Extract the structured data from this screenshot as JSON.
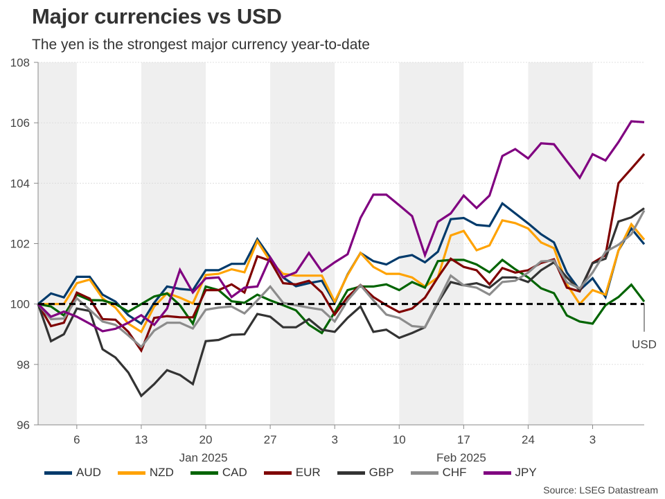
{
  "title": "Major currencies vs USD",
  "subtitle": "The yen is the strongest major currency year-to-date",
  "source": "Source: LSEG Datastream",
  "chart_data": {
    "type": "line",
    "title": "Major currencies vs USD",
    "subtitle": "The yen is the strongest major currency year-to-date",
    "xlabel": "",
    "ylabel": "",
    "ylim": [
      96,
      108
    ],
    "yticks": [
      "96",
      "98",
      "100",
      "102",
      "104",
      "106",
      "108"
    ],
    "ytick_values": [
      96,
      98,
      100,
      102,
      104,
      106,
      108
    ],
    "xtick_labels": [
      "6",
      "13",
      "20",
      "27",
      "3",
      "10",
      "17",
      "24",
      "3"
    ],
    "xtick_indices": [
      3,
      8,
      13,
      18,
      23,
      28,
      33,
      38,
      43
    ],
    "month_labels": [
      {
        "label": "Jan 2025",
        "index": 15.5
      },
      {
        "label": "Feb 2025",
        "index": 35.5
      }
    ],
    "shaded_weeks": [
      [
        0,
        3
      ],
      [
        8,
        13
      ],
      [
        18,
        23
      ],
      [
        28,
        33
      ],
      [
        38,
        43
      ]
    ],
    "baseline": {
      "name": "USD",
      "value": 100,
      "label": "USD"
    },
    "grid": true,
    "legend_position": "bottom",
    "n_points": 48,
    "series": [
      {
        "name": "AUD",
        "color": "#003a6b",
        "values": [
          100,
          100.35,
          100.22,
          100.9,
          100.9,
          100.31,
          100.08,
          99.63,
          99.35,
          100.04,
          100.58,
          100.5,
          100.46,
          101.12,
          101.12,
          101.33,
          101.33,
          102.15,
          101.54,
          100.88,
          100.59,
          100.69,
          100.77,
          100.04,
          100.98,
          101.69,
          101.42,
          101.31,
          101.54,
          101.62,
          101.38,
          101.73,
          102.81,
          102.85,
          102.62,
          102.58,
          103.33,
          103.0,
          102.67,
          102.31,
          102.04,
          101.04,
          100.46,
          100.85,
          100.23,
          101.77,
          102.5,
          101.98
        ]
      },
      {
        "name": "NZD",
        "color": "#ffa200",
        "values": [
          100,
          100,
          100,
          100.69,
          100.81,
          100.19,
          99.88,
          99.35,
          99.08,
          99.92,
          100.36,
          100.21,
          100.02,
          100.96,
          101.0,
          101.15,
          101.05,
          102.08,
          101.42,
          101.0,
          100.94,
          100.94,
          100.94,
          100.08,
          100.96,
          101.69,
          101.23,
          101.0,
          101.0,
          100.88,
          100.58,
          100.88,
          102.27,
          102.42,
          101.78,
          101.94,
          102.77,
          102.68,
          102.5,
          102.04,
          101.85,
          100.65,
          100.0,
          100.46,
          100.31,
          101.77,
          102.64,
          102.13
        ]
      },
      {
        "name": "CAD",
        "color": "#006400",
        "values": [
          100,
          99.92,
          99.62,
          100.31,
          100.13,
          100.12,
          100.0,
          99.75,
          100.0,
          100.25,
          100.35,
          99.96,
          99.35,
          100.58,
          100.46,
          100.09,
          100.04,
          100.31,
          100.12,
          99.96,
          99.79,
          99.31,
          99.04,
          99.73,
          100.46,
          100.58,
          100.58,
          100.65,
          100.46,
          100.73,
          100.54,
          101.42,
          101.46,
          101.46,
          101.31,
          101.05,
          101.46,
          101.15,
          100.88,
          100.52,
          100.36,
          99.62,
          99.42,
          99.35,
          99.96,
          100.23,
          100.64,
          100.08
        ]
      },
      {
        "name": "EUR",
        "color": "#7f0000",
        "values": [
          100,
          99.27,
          99.38,
          100.38,
          100.18,
          99.5,
          99.48,
          99.08,
          98.46,
          99.54,
          99.6,
          99.56,
          99.56,
          100.46,
          100.46,
          100.65,
          100.38,
          101.58,
          101.43,
          100.69,
          100.65,
          100.77,
          100.38,
          99.65,
          100.23,
          100.63,
          100.23,
          99.96,
          99.73,
          99.85,
          100.21,
          100.88,
          101.5,
          101.23,
          101.12,
          100.65,
          101.19,
          101.04,
          101.12,
          101.36,
          101.48,
          100.54,
          100.42,
          101.36,
          101.62,
          104.0,
          104.48,
          104.97
        ]
      },
      {
        "name": "GBP",
        "color": "#333333",
        "values": [
          100,
          98.77,
          99.0,
          99.85,
          99.77,
          98.5,
          98.23,
          97.73,
          96.96,
          97.35,
          97.81,
          97.65,
          97.35,
          98.77,
          98.81,
          98.98,
          99.0,
          99.67,
          99.58,
          99.23,
          99.23,
          99.5,
          99.15,
          99.08,
          99.54,
          99.92,
          99.08,
          99.15,
          98.88,
          99.04,
          99.23,
          100.04,
          100.73,
          100.62,
          100.69,
          100.54,
          100.88,
          100.88,
          100.73,
          101.12,
          101.38,
          100.88,
          100.46,
          101.35,
          101.5,
          102.73,
          102.87,
          103.17
        ]
      },
      {
        "name": "CHF",
        "color": "#8c8c8c",
        "values": [
          100,
          99.5,
          99.52,
          100.19,
          99.81,
          99.42,
          99.31,
          98.96,
          98.58,
          99.12,
          99.38,
          99.38,
          99.19,
          99.81,
          99.88,
          99.92,
          99.69,
          100.12,
          100.58,
          100.04,
          99.96,
          99.88,
          99.81,
          99.42,
          100.12,
          100.62,
          100.12,
          99.65,
          99.54,
          99.27,
          99.23,
          100.08,
          100.94,
          100.62,
          100.54,
          100.31,
          100.73,
          100.77,
          101.04,
          101.41,
          101.44,
          100.72,
          100.52,
          101.04,
          101.73,
          101.96,
          102.31,
          103.1
        ]
      },
      {
        "name": "JPY",
        "color": "#800080",
        "values": [
          100,
          99.58,
          99.75,
          99.58,
          99.35,
          99.1,
          99.18,
          99.38,
          99.63,
          99.31,
          99.85,
          101.13,
          100.38,
          100.85,
          100.88,
          100.23,
          100.54,
          100.58,
          101.54,
          100.88,
          101.05,
          101.69,
          101.08,
          101.38,
          101.65,
          102.85,
          103.62,
          103.62,
          103.27,
          102.91,
          101.62,
          102.72,
          103.0,
          103.59,
          103.18,
          103.59,
          104.9,
          105.13,
          104.82,
          105.32,
          105.29,
          104.73,
          104.18,
          104.96,
          104.75,
          105.36,
          106.05,
          106.02
        ]
      }
    ]
  }
}
